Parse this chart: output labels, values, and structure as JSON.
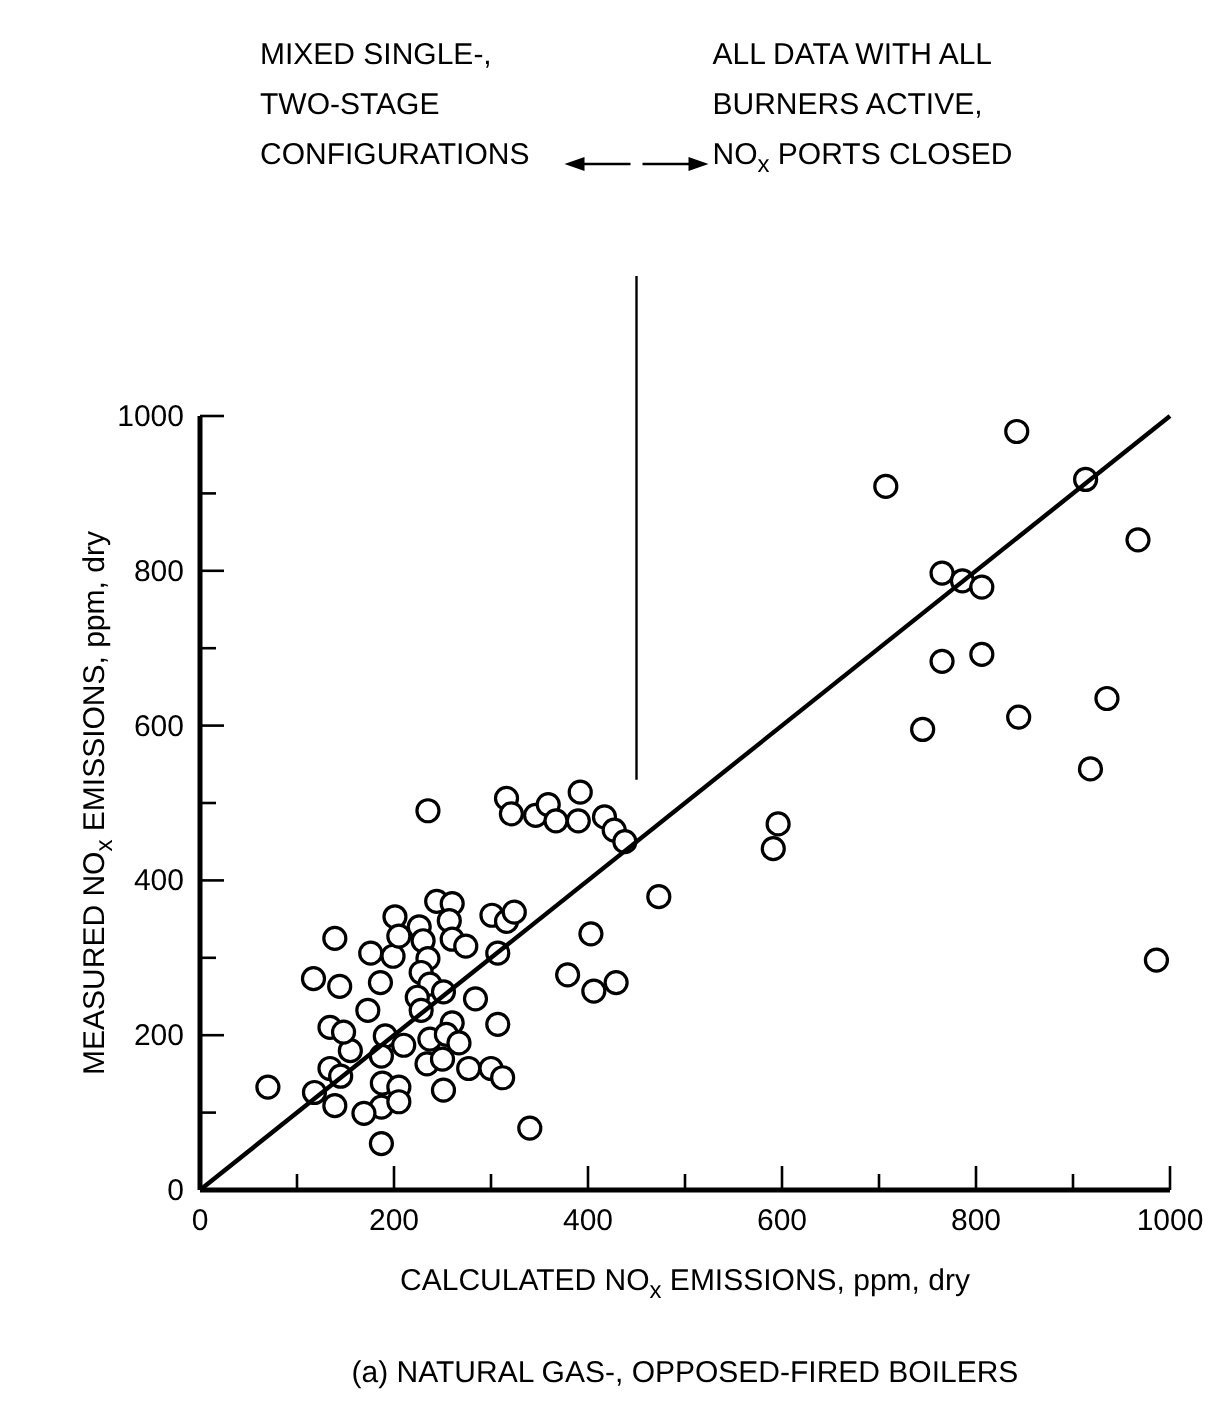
{
  "chart_data": {
    "type": "scatter",
    "title": "(a) NATURAL GAS-, OPPOSED-FIRED BOILERS",
    "xlabel": "CALCULATED NO$_{x}$ EMISSIONS, ppm, dry",
    "ylabel": "MEASURED NO$_{x}$ EMISSIONS, ppm, dry",
    "annotations": [
      "MIXED SINGLE-,\nTWO-STAGE\nCONFIGURATIONS",
      "ALL DATA WITH ALL\nBURNERS ACTIVE,\nNO$_{x}$ PORTS CLOSED"
    ],
    "xlim": [
      0,
      1000
    ],
    "ylim": [
      0,
      1000
    ],
    "xticks": [
      0,
      {
        "value": 100,
        "label": null
      },
      200,
      {
        "value": 300,
        "label": null
      },
      400,
      {
        "value": 500,
        "label": null
      },
      600,
      {
        "value": 700,
        "label": null
      },
      800,
      {
        "value": 900,
        "label": null
      },
      1000
    ],
    "yticks": [
      0,
      {
        "value": 100,
        "label": null
      },
      200,
      {
        "value": 300,
        "label": null
      },
      400,
      {
        "value": 500,
        "label": null
      },
      600,
      {
        "value": 700,
        "label": null
      },
      800,
      {
        "value": 900,
        "label": null
      },
      1000
    ],
    "grid": false,
    "marker": "circle",
    "ref_lines": [
      {
        "axis": "x",
        "value": 450,
        "label": null
      }
    ],
    "series": [
      {
        "type": "scatter",
        "color": "#000000",
        "x": [
          70,
          118,
          139,
          134,
          145,
          155,
          134,
          148,
          173,
          117,
          144,
          139,
          176,
          186,
          199,
          201,
          205,
          191,
          187,
          210,
          188,
          205,
          187,
          205,
          169,
          187,
          226,
          230,
          235,
          228,
          237,
          224,
          228,
          244,
          260,
          257,
          260,
          274,
          251,
          284,
          260,
          237,
          254,
          267,
          234,
          250,
          277,
          251,
          300,
          312,
          307,
          307,
          301,
          316,
          324,
          340,
          235,
          316,
          321,
          346,
          359,
          367,
          390,
          392,
          417,
          427,
          438,
          379,
          406,
          429,
          403,
          473,
          596,
          591,
          745,
          765,
          806,
          844,
          935,
          918,
          986,
          765,
          786,
          806,
          707,
          842,
          913,
          967
        ],
        "values": [
          133,
          126,
          109,
          157,
          147,
          180,
          210,
          204,
          232,
          273,
          263,
          325,
          306,
          268,
          302,
          353,
          328,
          199,
          173,
          187,
          138,
          133,
          107,
          114,
          99,
          60,
          340,
          322,
          299,
          281,
          266,
          249,
          232,
          373,
          370,
          348,
          324,
          315,
          256,
          247,
          216,
          195,
          201,
          190,
          163,
          169,
          157,
          129,
          157,
          145,
          214,
          306,
          355,
          347,
          359,
          80,
          490,
          506,
          486,
          484,
          498,
          477,
          477,
          514,
          482,
          465,
          450,
          278,
          257,
          268,
          331,
          379,
          473,
          441,
          595,
          683,
          692,
          611,
          635,
          544,
          297,
          797,
          787,
          779,
          909,
          980,
          918,
          840
        ]
      },
      {
        "type": "line",
        "color": "#000000",
        "x": [
          0,
          1000
        ],
        "values": [
          0,
          1000
        ],
        "marker": "none",
        "line_style": "solid"
      }
    ]
  }
}
